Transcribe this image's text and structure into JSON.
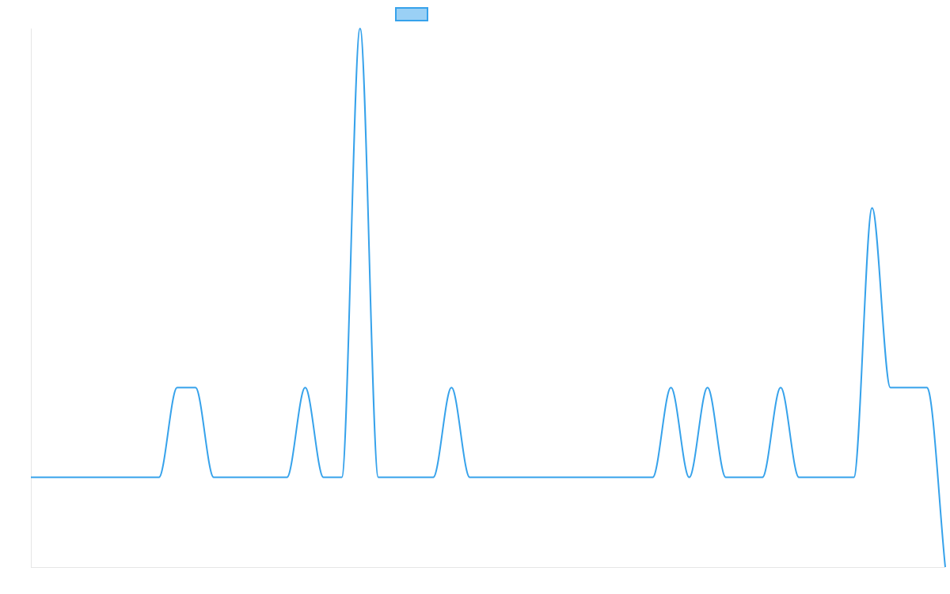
{
  "chart_data": {
    "type": "line",
    "title": "",
    "xlabel": "",
    "ylabel": "",
    "legend": {
      "placement": "top-center",
      "swatch_fill": "#9ad0f5",
      "swatch_stroke": "#36a2eb",
      "label": ""
    },
    "grid": false,
    "xlim": [
      0,
      50
    ],
    "ylim": [
      -1,
      5
    ],
    "series": [
      {
        "color": "#36a2eb",
        "smooth": true,
        "x": [
          0,
          1,
          2,
          3,
          4,
          5,
          6,
          7,
          8,
          9,
          10,
          11,
          12,
          13,
          14,
          15,
          16,
          17,
          18,
          19,
          20,
          21,
          22,
          23,
          24,
          25,
          26,
          27,
          28,
          29,
          30,
          31,
          32,
          33,
          34,
          35,
          36,
          37,
          38,
          39,
          40,
          41,
          42,
          43,
          44,
          45,
          46,
          47,
          48,
          49,
          50
        ],
        "y": [
          0,
          0,
          0,
          0,
          0,
          0,
          0,
          0,
          1,
          1,
          0,
          0,
          0,
          0,
          0,
          1,
          0,
          0,
          5,
          0,
          0,
          0,
          0,
          1,
          0,
          0,
          0,
          0,
          0,
          0,
          0,
          0,
          0,
          0,
          0,
          1,
          0,
          1,
          0,
          0,
          0,
          1,
          0,
          0,
          0,
          0,
          3,
          1,
          1,
          1,
          -1
        ]
      }
    ]
  }
}
